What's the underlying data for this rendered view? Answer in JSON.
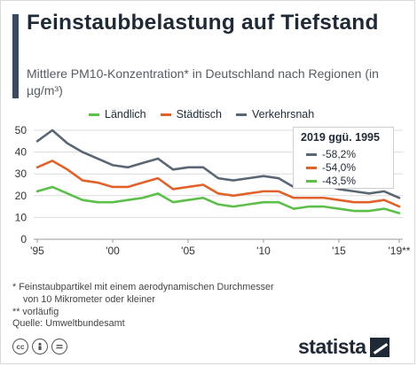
{
  "title": "Feinstaubbelastung auf Tiefstand",
  "subtitle": "Mittlere PM10-Konzentration* in Deutschland nach Regionen (in µg/m³)",
  "legend": [
    {
      "label": "Ländlich",
      "color": "#5cbf4a"
    },
    {
      "label": "Städtisch",
      "color": "#e0622a"
    },
    {
      "label": "Verkehrsnah",
      "color": "#5b6675"
    }
  ],
  "change_box": {
    "title": "2019 ggü. 1995",
    "rows": [
      {
        "value": "-58,2%",
        "color": "#5b6675"
      },
      {
        "value": "-54,0%",
        "color": "#e0622a"
      },
      {
        "value": "-43,5%",
        "color": "#5cbf4a"
      }
    ]
  },
  "footnotes": [
    "*  Feinstaubpartikel mit einem aerodynamischen Durchmesser",
    "    von 10 Mikrometer oder kleiner",
    "** vorläufig",
    "Quelle: Umweltbundesamt"
  ],
  "license_icons": [
    "cc-icon",
    "person-icon",
    "equals-icon"
  ],
  "brand": "statista",
  "chart_data": {
    "type": "line",
    "x": [
      1995,
      1996,
      1997,
      1998,
      1999,
      2000,
      2001,
      2002,
      2003,
      2004,
      2005,
      2006,
      2007,
      2008,
      2009,
      2010,
      2011,
      2012,
      2013,
      2014,
      2015,
      2016,
      2017,
      2018,
      2019
    ],
    "series": [
      {
        "name": "Ländlich",
        "color": "#5cbf4a",
        "values": [
          22,
          24,
          21,
          18,
          17,
          17,
          18,
          19,
          21,
          17,
          18,
          19,
          16,
          15,
          16,
          17,
          17,
          14,
          15,
          15,
          14,
          13,
          13,
          14,
          12
        ]
      },
      {
        "name": "Städtisch",
        "color": "#e0622a",
        "values": [
          33,
          36,
          32,
          27,
          26,
          24,
          24,
          26,
          28,
          23,
          24,
          25,
          21,
          20,
          21,
          22,
          22,
          19,
          19,
          19,
          18,
          17,
          17,
          18,
          15
        ]
      },
      {
        "name": "Verkehrsnah",
        "color": "#5b6675",
        "values": [
          45,
          50,
          44,
          40,
          37,
          34,
          33,
          35,
          37,
          32,
          33,
          33,
          28,
          27,
          28,
          29,
          28,
          24,
          25,
          25,
          23,
          22,
          21,
          22,
          19
        ]
      }
    ],
    "x_tick_labels": [
      {
        "x": 1995,
        "label": "'95"
      },
      {
        "x": 2000,
        "label": "'00"
      },
      {
        "x": 2005,
        "label": "'05"
      },
      {
        "x": 2010,
        "label": "'10"
      },
      {
        "x": 2015,
        "label": "'15"
      },
      {
        "x": 2019,
        "label": "'19**"
      }
    ],
    "y_ticks": [
      0,
      10,
      20,
      30,
      40,
      50
    ],
    "ylim": [
      0,
      50
    ],
    "xlim": [
      1995,
      2019
    ],
    "grid": "horizontal",
    "legend_position": "top"
  }
}
